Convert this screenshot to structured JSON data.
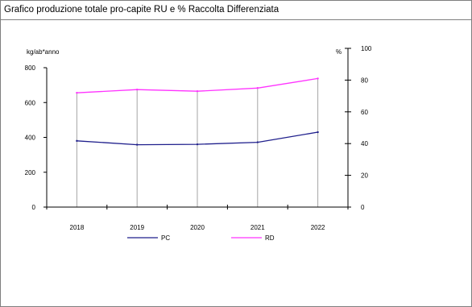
{
  "chart_data": {
    "type": "line",
    "title": "Grafico produzione totale pro-capite RU e % Raccolta Differenziata",
    "categories": [
      "2018",
      "2019",
      "2020",
      "2021",
      "2022"
    ],
    "series": [
      {
        "name": "PC",
        "axis": "left",
        "color": "#1f1f8c",
        "values": [
          380,
          358,
          360,
          372,
          430
        ]
      },
      {
        "name": "RD",
        "axis": "right",
        "color": "#ff33ff",
        "values": [
          72,
          74,
          73,
          75,
          81
        ]
      }
    ],
    "ylabel": "kg/ab*anno",
    "ylim": [
      0,
      800
    ],
    "yticks": [
      "0",
      "200",
      "400",
      "600",
      "800"
    ],
    "y2label": "%",
    "y2lim": [
      0,
      100
    ],
    "y2ticks": [
      "0",
      "20",
      "40",
      "60",
      "80",
      "100"
    ],
    "drop_lines": true,
    "legend_position": "bottom"
  }
}
